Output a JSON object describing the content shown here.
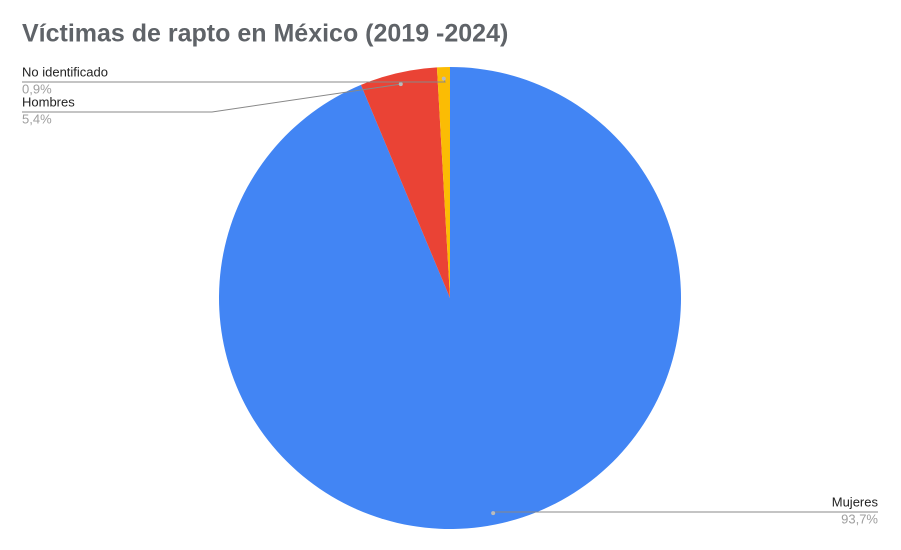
{
  "chart_data": {
    "type": "pie",
    "title": "Víctimas de rapto en México (2019 -2024)",
    "categories": [
      "Mujeres",
      "Hombres",
      "No identificado"
    ],
    "values": [
      93.7,
      5.4,
      0.9
    ],
    "value_labels": [
      "93,7%",
      "5,4%",
      "0,9%"
    ],
    "colors": [
      "#4285f4",
      "#ea4335",
      "#fbbc04"
    ]
  }
}
